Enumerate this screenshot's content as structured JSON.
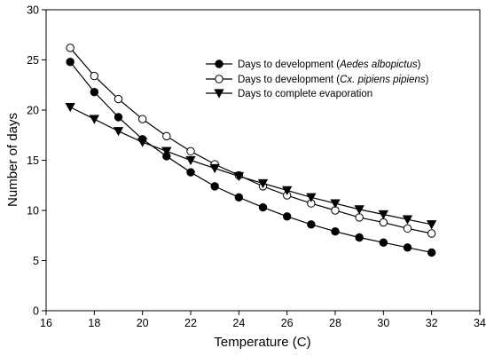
{
  "chart_data": {
    "type": "line",
    "title": "",
    "xlabel": "Temperature (C)",
    "ylabel": "Number of days",
    "xlim": [
      16,
      34
    ],
    "ylim": [
      0,
      30
    ],
    "xticks": [
      16,
      18,
      20,
      22,
      24,
      26,
      28,
      30,
      32,
      34
    ],
    "yticks": [
      0,
      5,
      10,
      15,
      20,
      25,
      30
    ],
    "grid": false,
    "legend_position": "upper-right",
    "series": [
      {
        "name_prefix": "Days to development (",
        "name_italic": "Aedes albopictus",
        "name_suffix": ")",
        "marker": "filled-circle",
        "color": "#000000",
        "x": [
          17,
          18,
          19,
          20,
          21,
          22,
          23,
          24,
          25,
          26,
          27,
          28,
          29,
          30,
          31,
          32
        ],
        "values": [
          24.8,
          21.8,
          19.3,
          17.1,
          15.4,
          13.8,
          12.4,
          11.3,
          10.3,
          9.4,
          8.6,
          7.9,
          7.3,
          6.8,
          6.3,
          5.8
        ]
      },
      {
        "name_prefix": "Days to development (",
        "name_italic": "Cx. pipiens pipiens",
        "name_suffix": ")",
        "marker": "open-circle",
        "color": "#000000",
        "x": [
          17,
          18,
          19,
          20,
          21,
          22,
          23,
          24,
          25,
          26,
          27,
          28,
          29,
          30,
          31,
          32
        ],
        "values": [
          26.2,
          23.4,
          21.1,
          19.1,
          17.4,
          15.9,
          14.6,
          13.5,
          12.4,
          11.5,
          10.7,
          10.0,
          9.3,
          8.8,
          8.2,
          7.7
        ]
      },
      {
        "name_prefix": "Days to complete evaporation",
        "name_italic": "",
        "name_suffix": "",
        "marker": "filled-triangle-down",
        "color": "#000000",
        "x": [
          17,
          18,
          19,
          20,
          21,
          22,
          23,
          24,
          25,
          26,
          27,
          28,
          29,
          30,
          31,
          32
        ],
        "values": [
          20.3,
          19.1,
          17.9,
          16.8,
          15.9,
          15.0,
          14.2,
          13.4,
          12.7,
          12.0,
          11.3,
          10.7,
          10.1,
          9.6,
          9.1,
          8.6
        ]
      }
    ]
  }
}
